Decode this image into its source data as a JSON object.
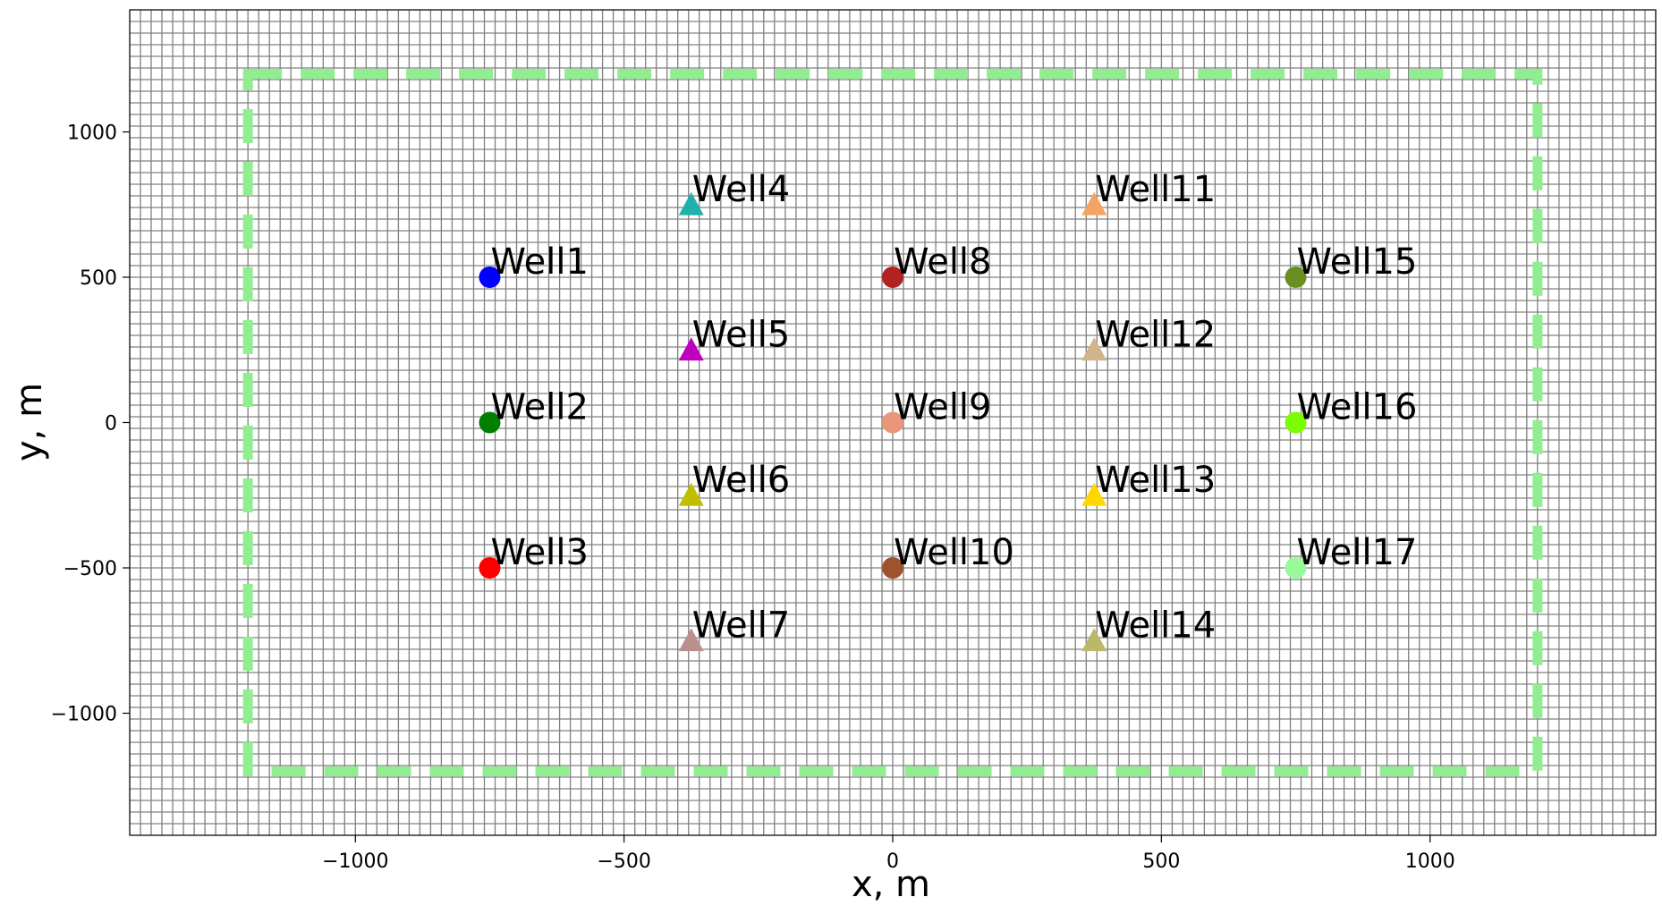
{
  "chart_data": {
    "type": "scatter",
    "title": "",
    "xlabel": "x, m",
    "ylabel": "y, m",
    "xlim": [
      -1420,
      1420
    ],
    "ylim": [
      -1420,
      1420
    ],
    "x_ticks": [
      -1000,
      -500,
      0,
      500,
      1000
    ],
    "y_ticks": [
      -1000,
      -500,
      0,
      500,
      1000
    ],
    "x_tick_labels": [
      "−1000",
      "−500",
      "0",
      "500",
      "1000"
    ],
    "y_tick_labels": [
      "−1000",
      "−500",
      "0",
      "500",
      "1000"
    ],
    "grid": true,
    "boundary": {
      "xmin": -1200,
      "xmax": 1200,
      "ymin": -1200,
      "ymax": 1200,
      "style": "dashed",
      "color": "#90EE90"
    },
    "wells": [
      {
        "label": "Well1",
        "x": -750,
        "y": 500,
        "marker": "circle",
        "color": "#0000FF"
      },
      {
        "label": "Well2",
        "x": -750,
        "y": 0,
        "marker": "circle",
        "color": "#008000"
      },
      {
        "label": "Well3",
        "x": -750,
        "y": -500,
        "marker": "circle",
        "color": "#FF0000"
      },
      {
        "label": "Well4",
        "x": -375,
        "y": 750,
        "marker": "triangle",
        "color": "#20B2AA"
      },
      {
        "label": "Well5",
        "x": -375,
        "y": 250,
        "marker": "triangle",
        "color": "#BF00BF"
      },
      {
        "label": "Well6",
        "x": -375,
        "y": -250,
        "marker": "triangle",
        "color": "#BFBF00"
      },
      {
        "label": "Well7",
        "x": -375,
        "y": -750,
        "marker": "triangle",
        "color": "#BC8F8F"
      },
      {
        "label": "Well8",
        "x": 0,
        "y": 500,
        "marker": "circle",
        "color": "#B22222"
      },
      {
        "label": "Well9",
        "x": 0,
        "y": 0,
        "marker": "circle",
        "color": "#E9967A"
      },
      {
        "label": "Well10",
        "x": 0,
        "y": -500,
        "marker": "circle",
        "color": "#A0522D"
      },
      {
        "label": "Well11",
        "x": 375,
        "y": 750,
        "marker": "triangle",
        "color": "#F4A460"
      },
      {
        "label": "Well12",
        "x": 375,
        "y": 250,
        "marker": "triangle",
        "color": "#D2B48C"
      },
      {
        "label": "Well13",
        "x": 375,
        "y": -250,
        "marker": "triangle",
        "color": "#FFD700"
      },
      {
        "label": "Well14",
        "x": 375,
        "y": -750,
        "marker": "triangle",
        "color": "#BDB76B"
      },
      {
        "label": "Well15",
        "x": 750,
        "y": 500,
        "marker": "circle",
        "color": "#6B8E23"
      },
      {
        "label": "Well16",
        "x": 750,
        "y": 0,
        "marker": "circle",
        "color": "#7CFC00"
      },
      {
        "label": "Well17",
        "x": 750,
        "y": -500,
        "marker": "circle",
        "color": "#98FB98"
      }
    ]
  }
}
